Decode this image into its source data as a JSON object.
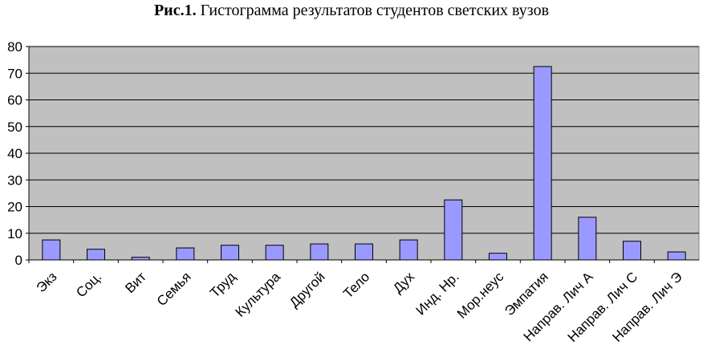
{
  "chart_data": {
    "type": "bar",
    "figure_label": "Рис.1.",
    "title": "Гистограмма результатов студентов светских вузов",
    "xlabel": "",
    "ylabel": "",
    "ylim": [
      0,
      80
    ],
    "yticks": [
      0,
      10,
      20,
      30,
      40,
      50,
      60,
      70,
      80
    ],
    "grid": true,
    "legend": "none",
    "categories": [
      "Экз",
      "Соц.",
      "Вит",
      "Семья",
      "Труд",
      "Культура",
      "Другой",
      "Тело",
      "Дух",
      "Инд. Нр.",
      "Мор.неус",
      "Эмпатия",
      "Направ. Лич А",
      "Направ. Лич С",
      "Направ. Лич Э"
    ],
    "values": [
      7.5,
      4,
      1,
      4.5,
      5.5,
      5.5,
      6,
      6,
      7.5,
      22.5,
      2.5,
      72.5,
      16,
      7,
      3
    ],
    "colors": {
      "bar_fill": "#9999ff",
      "bar_stroke": "#000000",
      "plot_background": "#c0c0c0",
      "gridline": "#000000"
    }
  }
}
